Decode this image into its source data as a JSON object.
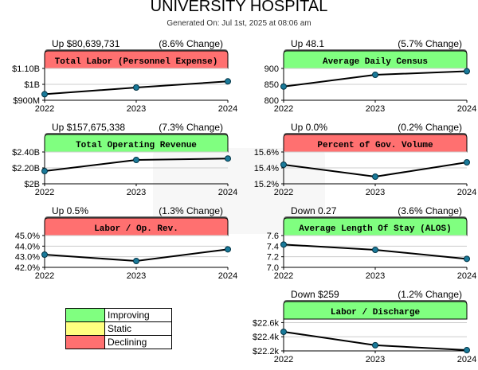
{
  "header": {
    "title": "UNIVERSITY HOSPITAL",
    "subtitle": "Generated On: Jul 1st, 2025 at 08:06 am"
  },
  "legend": [
    {
      "label": "Improving",
      "color": "#80ff80"
    },
    {
      "label": "Static",
      "color": "#ffff80"
    },
    {
      "label": "Declining",
      "color": "#ff7070"
    }
  ],
  "colors": {
    "improving": "#80ff80",
    "declining": "#ff7070",
    "line": "#000000",
    "marker": "#1a7a9a"
  },
  "chart_data": [
    {
      "type": "line",
      "title": "Total Labor (Personnel Expense)",
      "status": "declining",
      "change_left": "Up $80,639,731",
      "change_right": "(8.6% Change)",
      "x": [
        "2022",
        "2023",
        "2024"
      ],
      "values": [
        938000000,
        980000000,
        1018639731
      ],
      "yticks": [
        {
          "v": 900000000,
          "label": "$900M"
        },
        {
          "v": 1000000000,
          "label": "$1B"
        },
        {
          "v": 1100000000,
          "label": "$1.10B"
        }
      ],
      "ylim": [
        900000000,
        1100000000
      ]
    },
    {
      "type": "line",
      "title": "Average Daily Census",
      "status": "improving",
      "change_left": "Up 48.1",
      "change_right": "(5.7% Change)",
      "x": [
        "2022",
        "2023",
        "2024"
      ],
      "values": [
        843,
        880,
        891.1
      ],
      "yticks": [
        {
          "v": 800,
          "label": "800"
        },
        {
          "v": 850,
          "label": "850"
        },
        {
          "v": 900,
          "label": "900"
        }
      ],
      "ylim": [
        800,
        900
      ]
    },
    {
      "type": "line",
      "title": "Total Operating Revenue",
      "status": "improving",
      "change_left": "Up $157,675,338",
      "change_right": "(7.3% Change)",
      "x": [
        "2022",
        "2023",
        "2024"
      ],
      "values": [
        2160000000,
        2300000000,
        2317675338
      ],
      "yticks": [
        {
          "v": 2000000000,
          "label": "$2B"
        },
        {
          "v": 2200000000,
          "label": "$2.20B"
        },
        {
          "v": 2400000000,
          "label": "$2.40B"
        }
      ],
      "ylim": [
        2000000000,
        2400000000
      ]
    },
    {
      "type": "line",
      "title": "Percent of Gov. Volume",
      "status": "declining",
      "change_left": "Up 0.0%",
      "change_right": "(0.2% Change)",
      "x": [
        "2022",
        "2023",
        "2024"
      ],
      "values": [
        15.44,
        15.29,
        15.47
      ],
      "yticks": [
        {
          "v": 15.2,
          "label": "15.2%"
        },
        {
          "v": 15.4,
          "label": "15.4%"
        },
        {
          "v": 15.6,
          "label": "15.6%"
        }
      ],
      "ylim": [
        15.2,
        15.6
      ]
    },
    {
      "type": "line",
      "title": "Labor / Op. Rev.",
      "status": "declining",
      "change_left": "Up 0.5%",
      "change_right": "(1.3% Change)",
      "x": [
        "2022",
        "2023",
        "2024"
      ],
      "values": [
        43.2,
        42.6,
        43.7
      ],
      "yticks": [
        {
          "v": 42,
          "label": "42.0%"
        },
        {
          "v": 43,
          "label": "43.0%"
        },
        {
          "v": 44,
          "label": "44.0%"
        },
        {
          "v": 45,
          "label": "45.0%"
        }
      ],
      "ylim": [
        42,
        45
      ]
    },
    {
      "type": "line",
      "title": "Average Length Of Stay (ALOS)",
      "status": "improving",
      "change_left": "Down 0.27",
      "change_right": "(3.6% Change)",
      "x": [
        "2022",
        "2023",
        "2024"
      ],
      "values": [
        7.43,
        7.33,
        7.16
      ],
      "yticks": [
        {
          "v": 7.0,
          "label": "7.0"
        },
        {
          "v": 7.2,
          "label": "7.2"
        },
        {
          "v": 7.4,
          "label": "7.4"
        },
        {
          "v": 7.6,
          "label": "7.6"
        }
      ],
      "ylim": [
        7.0,
        7.6
      ]
    },
    {
      "type": "line",
      "title": "Labor / Discharge",
      "status": "improving",
      "change_left": "Down $259",
      "change_right": "(1.2% Change)",
      "x": [
        "2022",
        "2023",
        "2024"
      ],
      "values": [
        22470,
        22280,
        22211
      ],
      "yticks": [
        {
          "v": 22200,
          "label": "$22.2k"
        },
        {
          "v": 22400,
          "label": "$22.4k"
        },
        {
          "v": 22600,
          "label": "$22.6k"
        }
      ],
      "ylim": [
        22200,
        22650
      ]
    }
  ]
}
